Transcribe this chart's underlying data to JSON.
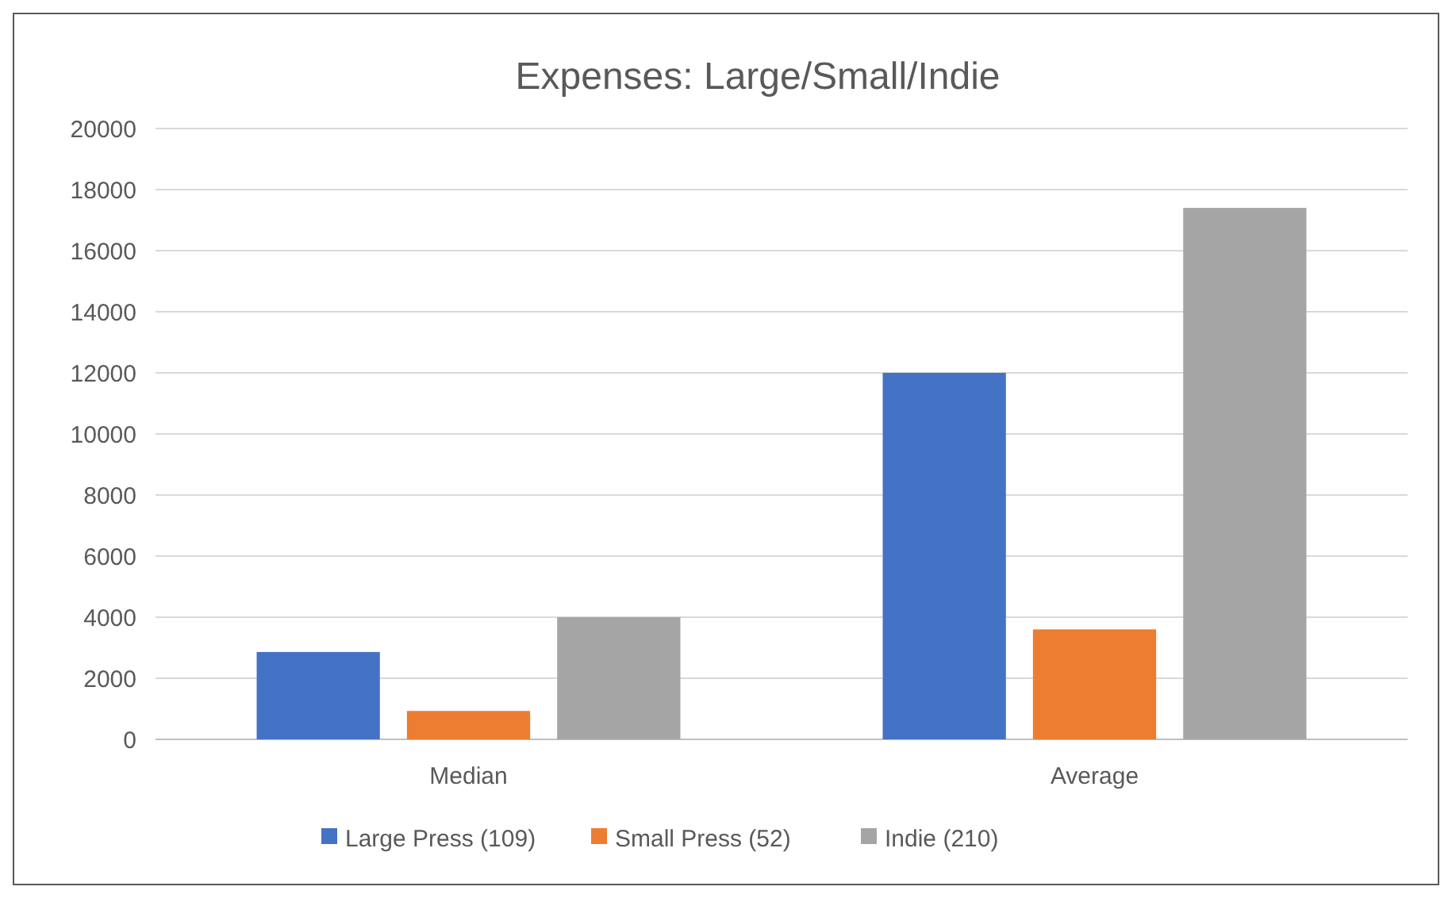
{
  "chart_data": {
    "type": "bar",
    "title": "Expenses: Large/Small/Indie",
    "categories": [
      "Median",
      "Average"
    ],
    "series": [
      {
        "name": "Large Press (109)",
        "color": "#4472c4",
        "values": [
          2860,
          12000
        ]
      },
      {
        "name": "Small Press (52)",
        "color": "#ed7d31",
        "values": [
          930,
          3600
        ]
      },
      {
        "name": "Indie (210)",
        "color": "#a5a5a5",
        "values": [
          4000,
          17400
        ]
      }
    ],
    "ylim": [
      0,
      20000
    ],
    "yticks": [
      0,
      2000,
      4000,
      6000,
      8000,
      10000,
      12000,
      14000,
      16000,
      18000,
      20000
    ],
    "grid": "y",
    "legend": "bottom"
  }
}
